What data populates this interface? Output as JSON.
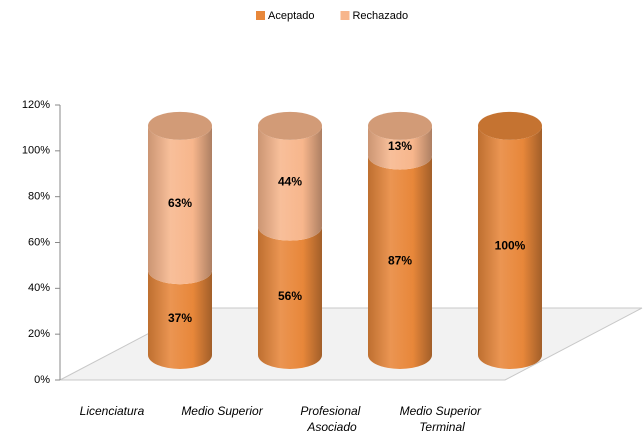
{
  "chart_data": {
    "type": "cylinder-stacked",
    "categories": [
      "Licenciatura",
      "Medio Superior",
      "Profesional Asociado",
      "Medio Superior Terminal"
    ],
    "series": [
      {
        "name": "Aceptado",
        "color": "#e8873a",
        "values": [
          37,
          56,
          87,
          100
        ],
        "value_labels": [
          "37%",
          "56%",
          "87%",
          "100%"
        ]
      },
      {
        "name": "Rechazado",
        "color": "#f7b68c",
        "values": [
          63,
          44,
          13,
          0
        ],
        "value_labels": [
          "63%",
          "44%",
          "13%",
          null
        ]
      }
    ],
    "ylim": [
      0,
      120
    ],
    "yticks": [
      {
        "value": 0,
        "label": "0%"
      },
      {
        "value": 20,
        "label": "20%"
      },
      {
        "value": 40,
        "label": "40%"
      },
      {
        "value": 60,
        "label": "60%"
      },
      {
        "value": 80,
        "label": "80%"
      },
      {
        "value": 100,
        "label": "100%"
      },
      {
        "value": 120,
        "label": "120%"
      }
    ],
    "legend": "top"
  }
}
